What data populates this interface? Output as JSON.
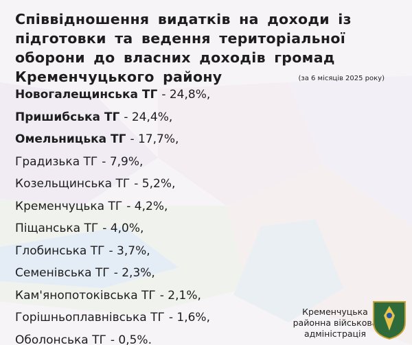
{
  "header": {
    "title": "Співвідношення видатків на доходи із підготовки та ведення територіальної оборони до власних доходів громад Кременчуцького району",
    "subtitle": "(за 6 місяців 2025 року)"
  },
  "items": [
    {
      "name": "Новогалещинська ТГ",
      "rest": "- 24,8%,",
      "bold": true
    },
    {
      "name": "Пришибська ТГ",
      "rest": "- 24,4%,",
      "bold": true
    },
    {
      "name": "Омельницька ТГ",
      "rest": "- 17,7%,",
      "bold": true
    },
    {
      "name": "Градизька ТГ",
      "rest": "- 7,9%,",
      "bold": false
    },
    {
      "name": "Козельщинська ТГ",
      "rest": "- 5,2%,",
      "bold": false
    },
    {
      "name": "Кременчуцька ТГ",
      "rest": "- 4,2%,",
      "bold": false
    },
    {
      "name": "Піщанська ТГ",
      "rest": "- 4,0%,",
      "bold": false
    },
    {
      "name": "Глобинська ТГ",
      "rest": "- 3,7%,",
      "bold": false
    },
    {
      "name": "Семенівська ТГ",
      "rest": "- 2,3%,",
      "bold": false
    },
    {
      "name": "Кам'янопотоківська ТГ",
      "rest": "- 2,1%,",
      "bold": false
    },
    {
      "name": "Горішньоплавнівська ТГ",
      "rest": "- 1,6%,",
      "bold": false
    },
    {
      "name": "Оболонська ТГ",
      "rest": "- 0,5%.",
      "bold": false
    }
  ],
  "footer": {
    "lines": [
      "Кременчуцька",
      "районна військова",
      "адміністрація"
    ]
  }
}
